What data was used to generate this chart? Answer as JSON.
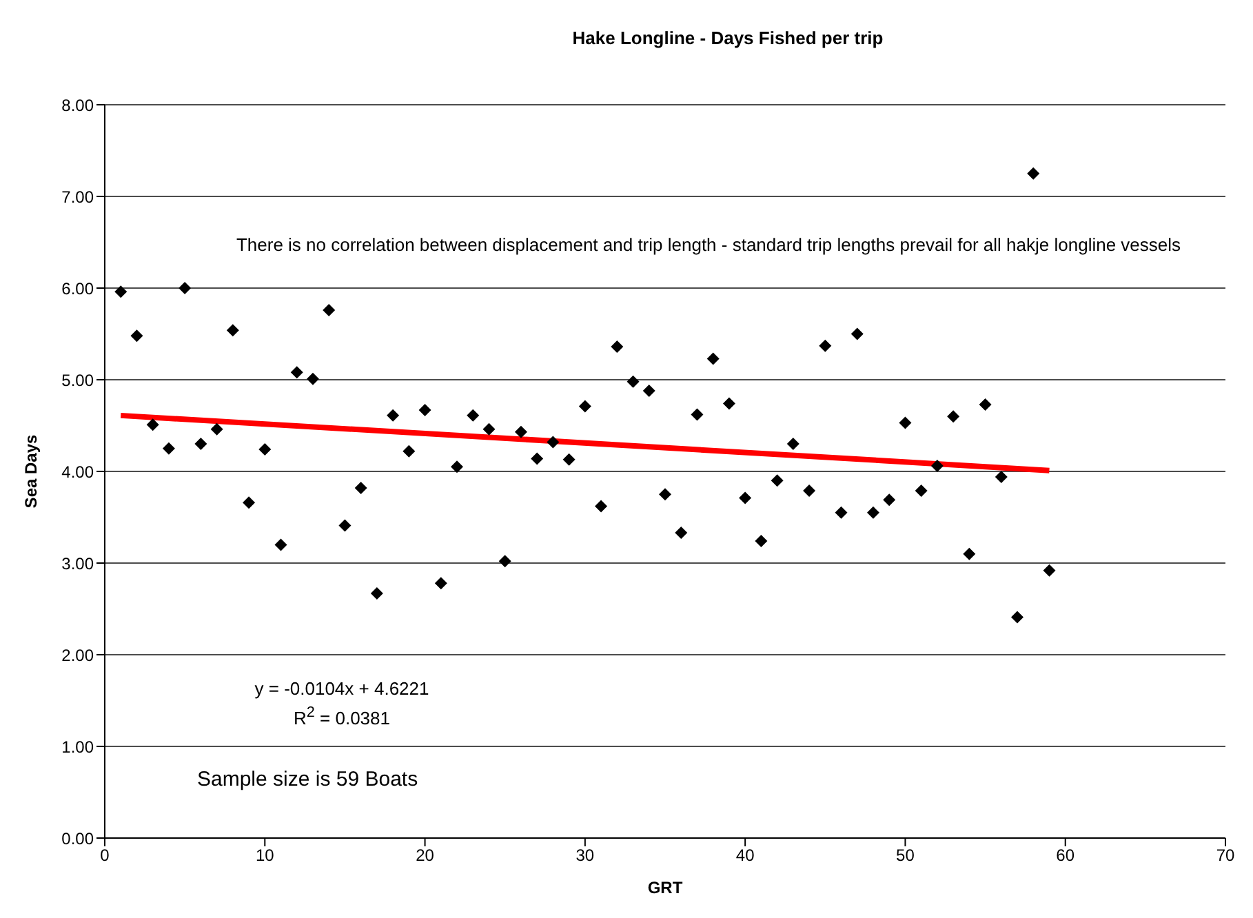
{
  "chart_data": {
    "type": "scatter",
    "title": "Hake Longline - Days Fished per trip",
    "xlabel": "GRT",
    "ylabel": "Sea Days",
    "annotations": [
      "There is no correlation between displacement  and trip length - standard trip lengths prevail for all hakje longline vessels",
      "y = -0.0104x + 4.6221",
      "R$^{2}$ = 0.0381",
      "Sample size is 59 Boats"
    ],
    "x": [
      1,
      2,
      3,
      4,
      5,
      6,
      7,
      8,
      9,
      10,
      11,
      12,
      13,
      14,
      15,
      16,
      17,
      18,
      19,
      20,
      21,
      22,
      23,
      24,
      25,
      26,
      27,
      28,
      29,
      30,
      31,
      32,
      33,
      34,
      35,
      36,
      37,
      38,
      39,
      40,
      41,
      42,
      43,
      44,
      45,
      46,
      47,
      48,
      49,
      50,
      51,
      52,
      53,
      54,
      55,
      56,
      57,
      58,
      59
    ],
    "series": [
      {
        "color": "#000000",
        "marker": "diamond",
        "values": [
          5.96,
          5.48,
          4.51,
          4.25,
          6.0,
          4.3,
          4.46,
          5.54,
          3.66,
          4.24,
          3.2,
          5.08,
          5.01,
          5.76,
          3.41,
          3.82,
          2.67,
          4.61,
          4.22,
          4.67,
          2.78,
          4.05,
          4.61,
          4.46,
          3.02,
          4.43,
          4.14,
          4.32,
          4.13,
          4.71,
          3.62,
          5.36,
          4.98,
          4.88,
          3.75,
          3.33,
          4.62,
          5.23,
          4.74,
          3.71,
          3.24,
          3.9,
          4.3,
          3.79,
          5.37,
          3.55,
          5.5,
          3.55,
          3.69,
          4.53,
          3.79,
          4.06,
          4.6,
          3.1,
          4.73,
          3.94,
          2.41,
          7.25,
          2.92
        ]
      },
      {
        "type": "line",
        "color": "#ff0000",
        "marker": "none",
        "line_style": "solid",
        "x": [
          1,
          59
        ],
        "values": [
          4.61,
          4.01
        ]
      }
    ],
    "xlim": [
      0,
      70
    ],
    "xticks": [
      0,
      10,
      20,
      30,
      40,
      50,
      60,
      70
    ],
    "ylim": [
      0,
      8
    ],
    "yticks": [
      {
        "value": 0,
        "label": "0.00"
      },
      {
        "value": 1,
        "label": "1.00"
      },
      {
        "value": 2,
        "label": "2.00"
      },
      {
        "value": 3,
        "label": "3.00"
      },
      {
        "value": 4,
        "label": "4.00"
      },
      {
        "value": 5,
        "label": "5.00"
      },
      {
        "value": 6,
        "label": "6.00"
      },
      {
        "value": 7,
        "label": "7.00"
      },
      {
        "value": 8,
        "label": "8.00"
      }
    ],
    "grid": "y",
    "legend": false
  }
}
